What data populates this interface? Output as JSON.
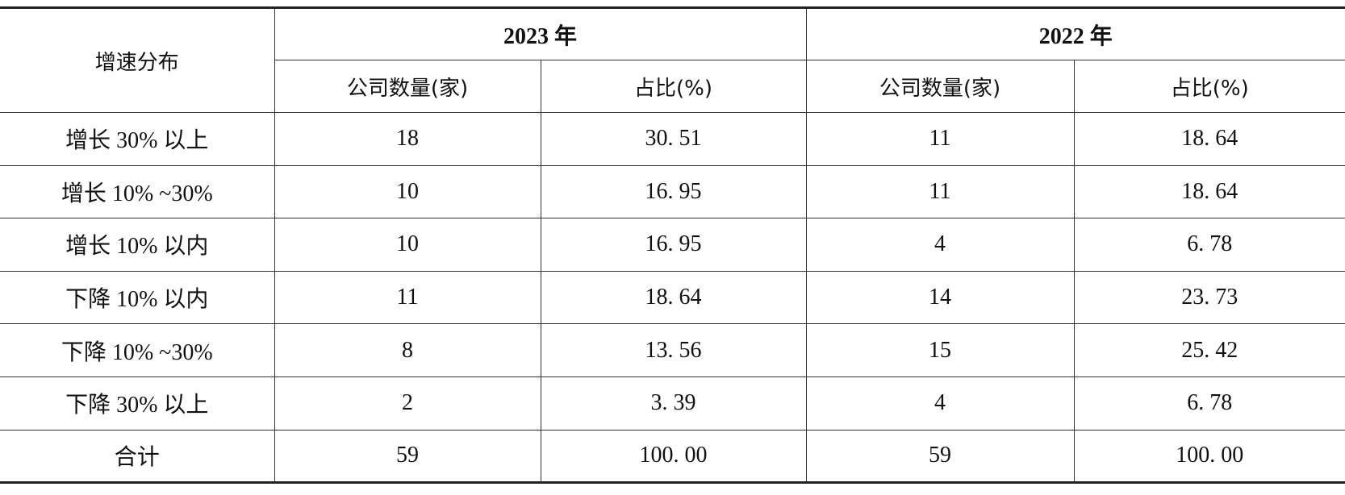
{
  "table": {
    "row_header": "增速分布",
    "years": [
      "2023 年",
      "2022 年"
    ],
    "sub_headers": [
      "公司数量(家)",
      "占比(%)",
      "公司数量(家)",
      "占比(%)"
    ],
    "rows": [
      {
        "label": "增长 30% 以上",
        "c2023": "18",
        "p2023": "30. 51",
        "c2022": "11",
        "p2022": "18. 64"
      },
      {
        "label": "增长 10% ~30%",
        "c2023": "10",
        "p2023": "16. 95",
        "c2022": "11",
        "p2022": "18. 64"
      },
      {
        "label": "增长 10% 以内",
        "c2023": "10",
        "p2023": "16. 95",
        "c2022": "4",
        "p2022": "6. 78"
      },
      {
        "label": "下降 10% 以内",
        "c2023": "11",
        "p2023": "18. 64",
        "c2022": "14",
        "p2022": "23. 73"
      },
      {
        "label": "下降 10% ~30%",
        "c2023": "8",
        "p2023": "13. 56",
        "c2022": "15",
        "p2022": "25. 42"
      },
      {
        "label": "下降 30% 以上",
        "c2023": "2",
        "p2023": "3. 39",
        "c2022": "4",
        "p2022": "6. 78"
      },
      {
        "label": "合计",
        "c2023": "59",
        "p2023": "100. 00",
        "c2022": "59",
        "p2022": "100. 00"
      }
    ]
  }
}
